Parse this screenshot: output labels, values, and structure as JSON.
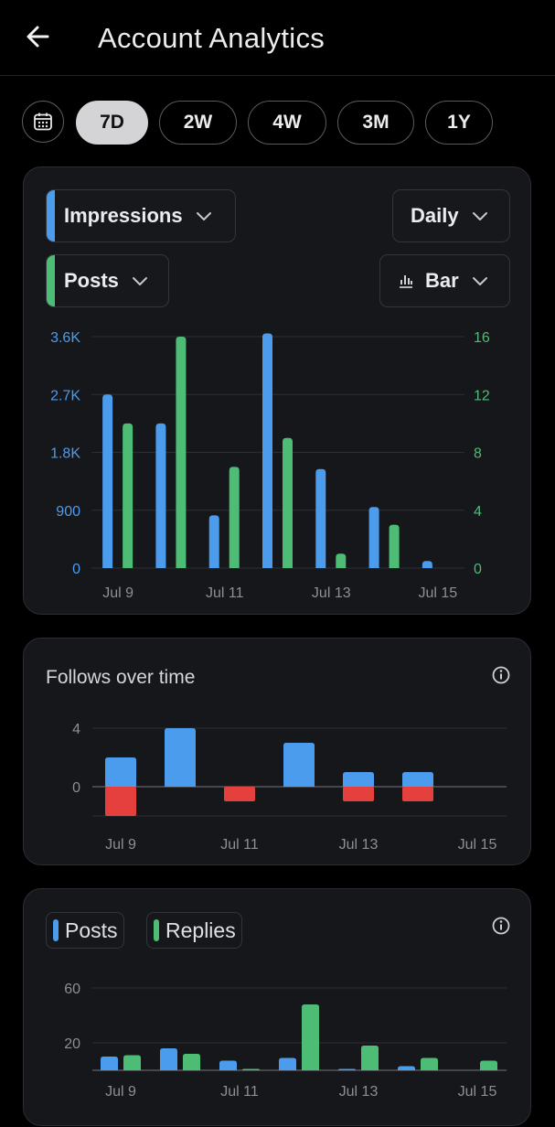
{
  "header": {
    "title": "Account Analytics"
  },
  "range_tabs": [
    {
      "label": "7D",
      "selected": true
    },
    {
      "label": "2W",
      "selected": false
    },
    {
      "label": "4W",
      "selected": false
    },
    {
      "label": "3M",
      "selected": false
    },
    {
      "label": "1Y",
      "selected": false
    }
  ],
  "impressions_card": {
    "metric1": {
      "label": "Impressions",
      "color": "#4c9ced"
    },
    "metric2": {
      "label": "Posts",
      "color": "#4dbd76"
    },
    "granularity": {
      "label": "Daily"
    },
    "chart_type": {
      "label": "Bar"
    }
  },
  "follows_card": {
    "title": "Follows over time"
  },
  "activity_card": {
    "legend": [
      {
        "label": "Posts",
        "color": "#4c9ced"
      },
      {
        "label": "Replies",
        "color": "#4dbd76"
      }
    ]
  },
  "chart_data": [
    {
      "type": "bar",
      "categories": [
        "Jul 9",
        "Jul 10",
        "Jul 11",
        "Jul 12",
        "Jul 13",
        "Jul 14",
        "Jul 15"
      ],
      "x_tick_labels": [
        "Jul 9",
        "Jul 11",
        "Jul 13",
        "Jul 15"
      ],
      "series": [
        {
          "name": "Impressions",
          "axis": "left",
          "color": "#4c9ced",
          "values": [
            2700,
            2250,
            820,
            3650,
            1540,
            950,
            110
          ]
        },
        {
          "name": "Posts",
          "axis": "right",
          "color": "#4dbd76",
          "values": [
            10,
            16,
            7,
            9,
            1,
            3,
            0
          ]
        }
      ],
      "y_left": {
        "ticks": [
          "0",
          "900",
          "1.8K",
          "2.7K",
          "3.6K"
        ],
        "tick_values": [
          0,
          900,
          1800,
          2700,
          3600
        ],
        "ylim": [
          0,
          3600
        ]
      },
      "y_right": {
        "ticks": [
          "0",
          "4",
          "8",
          "12",
          "16"
        ],
        "tick_values": [
          0,
          4,
          8,
          12,
          16
        ],
        "ylim": [
          0,
          16
        ]
      },
      "grid": true
    },
    {
      "type": "bar",
      "categories": [
        "Jul 9",
        "Jul 10",
        "Jul 11",
        "Jul 12",
        "Jul 13",
        "Jul 14",
        "Jul 15"
      ],
      "x_tick_labels": [
        "Jul 9",
        "Jul 11",
        "Jul 13",
        "Jul 15"
      ],
      "series": [
        {
          "name": "Follows",
          "color": "#4c9ced",
          "values": [
            2,
            4,
            0,
            3,
            1,
            1,
            0
          ]
        },
        {
          "name": "Unfollows",
          "color": "#e5403d",
          "values": [
            -2,
            0,
            -1,
            0,
            -1,
            -1,
            0
          ]
        }
      ],
      "y_ticks": [
        "0",
        "4"
      ],
      "ylim": [
        -2,
        4
      ],
      "grid": true
    },
    {
      "type": "bar",
      "categories": [
        "Jul 9",
        "Jul 10",
        "Jul 11",
        "Jul 12",
        "Jul 13",
        "Jul 14",
        "Jul 15"
      ],
      "x_tick_labels": [
        "Jul 9",
        "Jul 11",
        "Jul 13",
        "Jul 15"
      ],
      "series": [
        {
          "name": "Posts",
          "color": "#4c9ced",
          "values": [
            10,
            16,
            7,
            9,
            1,
            3,
            0
          ]
        },
        {
          "name": "Replies",
          "color": "#4dbd76",
          "values": [
            11,
            12,
            1,
            48,
            18,
            9,
            7
          ]
        }
      ],
      "y_ticks": [
        "20",
        "60"
      ],
      "tick_values": [
        20,
        60
      ],
      "grid": true
    }
  ]
}
